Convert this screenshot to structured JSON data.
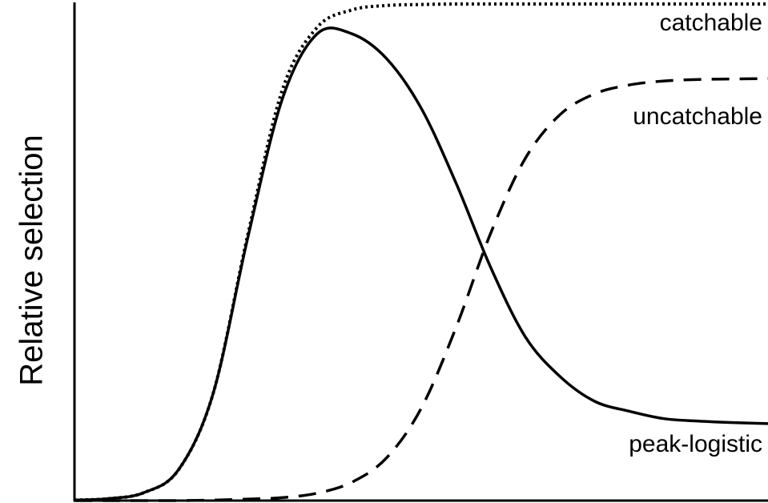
{
  "chart_data": {
    "type": "line",
    "y_label": "Relative selection",
    "xlim": [
      0,
      1
    ],
    "ylim": [
      0,
      1
    ],
    "x": [
      0,
      0.05,
      0.1,
      0.15,
      0.2,
      0.25,
      0.3,
      0.35,
      0.4,
      0.45,
      0.5,
      0.55,
      0.6,
      0.65,
      0.7,
      0.75,
      0.8,
      0.85,
      0.9,
      0.95,
      1
    ],
    "series": [
      {
        "name": "catchable",
        "color": "#000000",
        "linestyle": "dotted",
        "values": [
          0.001,
          0.004,
          0.016,
          0.062,
          0.216,
          0.536,
          0.828,
          0.953,
          0.988,
          0.997,
          0.999,
          1,
          1,
          1,
          1,
          1,
          1,
          1,
          1,
          1,
          1
        ]
      },
      {
        "name": "uncatchable",
        "color": "#000000",
        "linestyle": "dashed",
        "values": [
          0,
          0,
          0,
          0,
          0.001,
          0.003,
          0.006,
          0.015,
          0.037,
          0.086,
          0.186,
          0.348,
          0.538,
          0.689,
          0.777,
          0.819,
          0.837,
          0.845,
          0.848,
          0.849,
          0.85
        ]
      },
      {
        "name": "peak-logistic",
        "color": "#000000",
        "linestyle": "solid",
        "values": [
          0.001,
          0.004,
          0.016,
          0.062,
          0.216,
          0.53,
          0.81,
          0.94,
          0.94,
          0.89,
          0.79,
          0.64,
          0.47,
          0.33,
          0.25,
          0.2,
          0.18,
          0.165,
          0.16,
          0.157,
          0.155
        ]
      }
    ]
  }
}
